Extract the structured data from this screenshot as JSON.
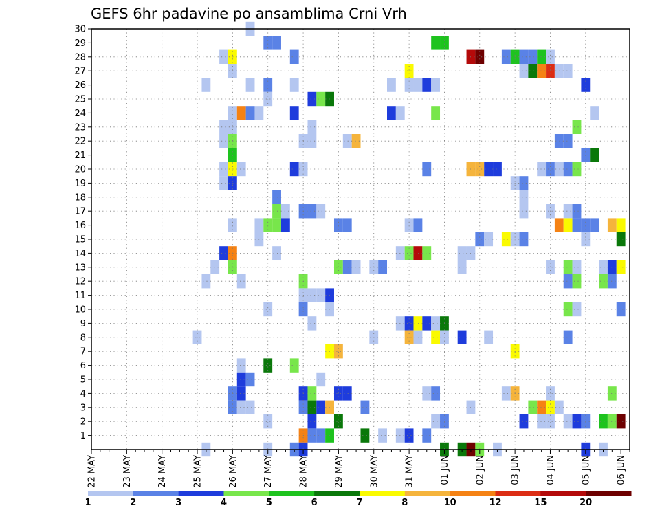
{
  "chart_data": {
    "type": "heatmap",
    "title": "GEFS 6hr padavine po ansamblima Crni Vrh",
    "xlabel": "",
    "ylabel": "",
    "x_tick_labels": [
      "22 MAY",
      "23 MAY",
      "24 MAY",
      "25 MAY",
      "26 MAY",
      "27 MAY",
      "28 MAY",
      "29 MAY",
      "30 MAY",
      "31 MAY",
      "01 JUN",
      "02 JUN",
      "03 JUN",
      "04 JUN",
      "05 JUN",
      "06 JUN"
    ],
    "y_tick_labels": [
      "1",
      "2",
      "3",
      "4",
      "5",
      "6",
      "7",
      "8",
      "9",
      "10",
      "11",
      "12",
      "13",
      "14",
      "15",
      "16",
      "17",
      "18",
      "19",
      "20",
      "21",
      "22",
      "23",
      "24",
      "25",
      "26",
      "27",
      "28",
      "29",
      "30"
    ],
    "xlim": [
      0,
      61
    ],
    "ylim": [
      0,
      30
    ],
    "grid": true,
    "legend": {
      "position": "bottom",
      "labels": [
        "1",
        "2",
        "3",
        "4",
        "5",
        "6",
        "7",
        "8",
        "10",
        "12",
        "15",
        "20"
      ],
      "colors": [
        "#b4c6f0",
        "#5a82e6",
        "#1e3cdc",
        "#78e64b",
        "#1ec31e",
        "#0a780a",
        "#fafa00",
        "#f5b43c",
        "#f58214",
        "#dc2d14",
        "#b40a0a",
        "#6e0000"
      ]
    },
    "cells_xy_level": [
      [
        18,
        30,
        0
      ],
      [
        20,
        29,
        1
      ],
      [
        21,
        29,
        1
      ],
      [
        39,
        29,
        4
      ],
      [
        40,
        29,
        4
      ],
      [
        15,
        28,
        0
      ],
      [
        16,
        28,
        6
      ],
      [
        23,
        28,
        1
      ],
      [
        43,
        28,
        10
      ],
      [
        44,
        28,
        11
      ],
      [
        47,
        28,
        1
      ],
      [
        48,
        28,
        4
      ],
      [
        49,
        28,
        1
      ],
      [
        50,
        28,
        1
      ],
      [
        51,
        28,
        4
      ],
      [
        52,
        28,
        0
      ],
      [
        16,
        27,
        0
      ],
      [
        36,
        27,
        6
      ],
      [
        49,
        27,
        0
      ],
      [
        50,
        27,
        5
      ],
      [
        51,
        27,
        8
      ],
      [
        52,
        27,
        9
      ],
      [
        53,
        27,
        0
      ],
      [
        54,
        27,
        0
      ],
      [
        13,
        26,
        0
      ],
      [
        18,
        26,
        0
      ],
      [
        20,
        26,
        1
      ],
      [
        23,
        26,
        0
      ],
      [
        34,
        26,
        0
      ],
      [
        36,
        26,
        0
      ],
      [
        37,
        26,
        0
      ],
      [
        38,
        26,
        2
      ],
      [
        39,
        26,
        0
      ],
      [
        56,
        26,
        2
      ],
      [
        20,
        25,
        0
      ],
      [
        25,
        25,
        2
      ],
      [
        26,
        25,
        3
      ],
      [
        27,
        25,
        5
      ],
      [
        16,
        24,
        0
      ],
      [
        17,
        24,
        8
      ],
      [
        18,
        24,
        1
      ],
      [
        19,
        24,
        0
      ],
      [
        23,
        24,
        2
      ],
      [
        34,
        24,
        2
      ],
      [
        35,
        24,
        0
      ],
      [
        39,
        24,
        3
      ],
      [
        57,
        24,
        0
      ],
      [
        15,
        23,
        0
      ],
      [
        16,
        23,
        0
      ],
      [
        25,
        23,
        0
      ],
      [
        55,
        23,
        3
      ],
      [
        15,
        22,
        0
      ],
      [
        16,
        22,
        3
      ],
      [
        24,
        22,
        0
      ],
      [
        25,
        22,
        0
      ],
      [
        29,
        22,
        0
      ],
      [
        30,
        22,
        7
      ],
      [
        53,
        22,
        1
      ],
      [
        54,
        22,
        1
      ],
      [
        16,
        21,
        4
      ],
      [
        56,
        21,
        1
      ],
      [
        57,
        21,
        5
      ],
      [
        15,
        20,
        0
      ],
      [
        16,
        20,
        6
      ],
      [
        17,
        20,
        0
      ],
      [
        23,
        20,
        2
      ],
      [
        24,
        20,
        0
      ],
      [
        38,
        20,
        1
      ],
      [
        43,
        20,
        7
      ],
      [
        44,
        20,
        7
      ],
      [
        45,
        20,
        2
      ],
      [
        46,
        20,
        2
      ],
      [
        51,
        20,
        0
      ],
      [
        52,
        20,
        1
      ],
      [
        53,
        20,
        0
      ],
      [
        54,
        20,
        1
      ],
      [
        55,
        20,
        3
      ],
      [
        15,
        19,
        0
      ],
      [
        16,
        19,
        2
      ],
      [
        48,
        19,
        0
      ],
      [
        49,
        19,
        1
      ],
      [
        21,
        18,
        1
      ],
      [
        49,
        18,
        0
      ],
      [
        21,
        17,
        3
      ],
      [
        22,
        17,
        0
      ],
      [
        24,
        17,
        1
      ],
      [
        25,
        17,
        1
      ],
      [
        26,
        17,
        0
      ],
      [
        49,
        17,
        0
      ],
      [
        52,
        17,
        0
      ],
      [
        54,
        17,
        0
      ],
      [
        55,
        17,
        1
      ],
      [
        16,
        16,
        0
      ],
      [
        19,
        16,
        0
      ],
      [
        20,
        16,
        3
      ],
      [
        21,
        16,
        3
      ],
      [
        22,
        16,
        2
      ],
      [
        28,
        16,
        1
      ],
      [
        29,
        16,
        1
      ],
      [
        36,
        16,
        0
      ],
      [
        37,
        16,
        1
      ],
      [
        53,
        16,
        8
      ],
      [
        54,
        16,
        6
      ],
      [
        55,
        16,
        1
      ],
      [
        56,
        16,
        1
      ],
      [
        57,
        16,
        1
      ],
      [
        59,
        16,
        7
      ],
      [
        60,
        16,
        6
      ],
      [
        19,
        15,
        0
      ],
      [
        44,
        15,
        1
      ],
      [
        45,
        15,
        0
      ],
      [
        47,
        15,
        6
      ],
      [
        48,
        15,
        0
      ],
      [
        49,
        15,
        1
      ],
      [
        56,
        15,
        0
      ],
      [
        60,
        15,
        5
      ],
      [
        15,
        14,
        2
      ],
      [
        16,
        14,
        8
      ],
      [
        21,
        14,
        0
      ],
      [
        35,
        14,
        0
      ],
      [
        36,
        14,
        3
      ],
      [
        37,
        14,
        10
      ],
      [
        38,
        14,
        3
      ],
      [
        42,
        14,
        0
      ],
      [
        43,
        14,
        0
      ],
      [
        14,
        13,
        0
      ],
      [
        16,
        13,
        3
      ],
      [
        28,
        13,
        3
      ],
      [
        29,
        13,
        1
      ],
      [
        30,
        13,
        0
      ],
      [
        32,
        13,
        0
      ],
      [
        33,
        13,
        1
      ],
      [
        42,
        13,
        0
      ],
      [
        52,
        13,
        0
      ],
      [
        54,
        13,
        3
      ],
      [
        55,
        13,
        0
      ],
      [
        58,
        13,
        0
      ],
      [
        59,
        13,
        2
      ],
      [
        60,
        13,
        6
      ],
      [
        13,
        12,
        0
      ],
      [
        17,
        12,
        0
      ],
      [
        24,
        12,
        3
      ],
      [
        54,
        12,
        1
      ],
      [
        55,
        12,
        3
      ],
      [
        58,
        12,
        3
      ],
      [
        59,
        12,
        1
      ],
      [
        24,
        11,
        0
      ],
      [
        25,
        11,
        0
      ],
      [
        26,
        11,
        0
      ],
      [
        27,
        11,
        2
      ],
      [
        20,
        10,
        0
      ],
      [
        24,
        10,
        1
      ],
      [
        27,
        10,
        0
      ],
      [
        54,
        10,
        3
      ],
      [
        55,
        10,
        0
      ],
      [
        60,
        10,
        1
      ],
      [
        25,
        9,
        0
      ],
      [
        35,
        9,
        0
      ],
      [
        36,
        9,
        2
      ],
      [
        37,
        9,
        6
      ],
      [
        38,
        9,
        2
      ],
      [
        39,
        9,
        0
      ],
      [
        40,
        9,
        5
      ],
      [
        12,
        8,
        0
      ],
      [
        32,
        8,
        0
      ],
      [
        36,
        8,
        7
      ],
      [
        37,
        8,
        0
      ],
      [
        39,
        8,
        6
      ],
      [
        40,
        8,
        0
      ],
      [
        42,
        8,
        2
      ],
      [
        45,
        8,
        0
      ],
      [
        54,
        8,
        1
      ],
      [
        27,
        7,
        6
      ],
      [
        28,
        7,
        7
      ],
      [
        48,
        7,
        6
      ],
      [
        17,
        6,
        0
      ],
      [
        20,
        6,
        5
      ],
      [
        23,
        6,
        3
      ],
      [
        17,
        5,
        2
      ],
      [
        18,
        5,
        1
      ],
      [
        26,
        5,
        0
      ],
      [
        16,
        4,
        1
      ],
      [
        17,
        4,
        2
      ],
      [
        24,
        4,
        2
      ],
      [
        25,
        4,
        3
      ],
      [
        28,
        4,
        2
      ],
      [
        29,
        4,
        2
      ],
      [
        38,
        4,
        0
      ],
      [
        39,
        4,
        1
      ],
      [
        47,
        4,
        0
      ],
      [
        48,
        4,
        7
      ],
      [
        52,
        4,
        0
      ],
      [
        59,
        4,
        3
      ],
      [
        16,
        3,
        1
      ],
      [
        17,
        3,
        0
      ],
      [
        18,
        3,
        0
      ],
      [
        24,
        3,
        1
      ],
      [
        25,
        3,
        5
      ],
      [
        26,
        3,
        2
      ],
      [
        27,
        3,
        7
      ],
      [
        31,
        3,
        1
      ],
      [
        43,
        3,
        0
      ],
      [
        50,
        3,
        3
      ],
      [
        51,
        3,
        8
      ],
      [
        52,
        3,
        6
      ],
      [
        53,
        3,
        0
      ],
      [
        20,
        2,
        0
      ],
      [
        25,
        2,
        2
      ],
      [
        28,
        2,
        5
      ],
      [
        39,
        2,
        0
      ],
      [
        40,
        2,
        1
      ],
      [
        49,
        2,
        2
      ],
      [
        51,
        2,
        0
      ],
      [
        52,
        2,
        0
      ],
      [
        54,
        2,
        0
      ],
      [
        55,
        2,
        2
      ],
      [
        56,
        2,
        1
      ],
      [
        58,
        2,
        4
      ],
      [
        59,
        2,
        3
      ],
      [
        60,
        2,
        11
      ],
      [
        24,
        1,
        8
      ],
      [
        25,
        1,
        1
      ],
      [
        26,
        1,
        1
      ],
      [
        27,
        1,
        4
      ],
      [
        31,
        1,
        5
      ],
      [
        33,
        1,
        0
      ],
      [
        35,
        1,
        0
      ],
      [
        36,
        1,
        2
      ],
      [
        38,
        1,
        1
      ],
      [
        13,
        0,
        0
      ],
      [
        20,
        0,
        0
      ],
      [
        23,
        0,
        1
      ],
      [
        24,
        0,
        2
      ],
      [
        40,
        0,
        5
      ],
      [
        42,
        0,
        5
      ],
      [
        43,
        0,
        11
      ],
      [
        44,
        0,
        3
      ],
      [
        46,
        0,
        0
      ],
      [
        56,
        0,
        2
      ],
      [
        58,
        0,
        0
      ]
    ]
  }
}
